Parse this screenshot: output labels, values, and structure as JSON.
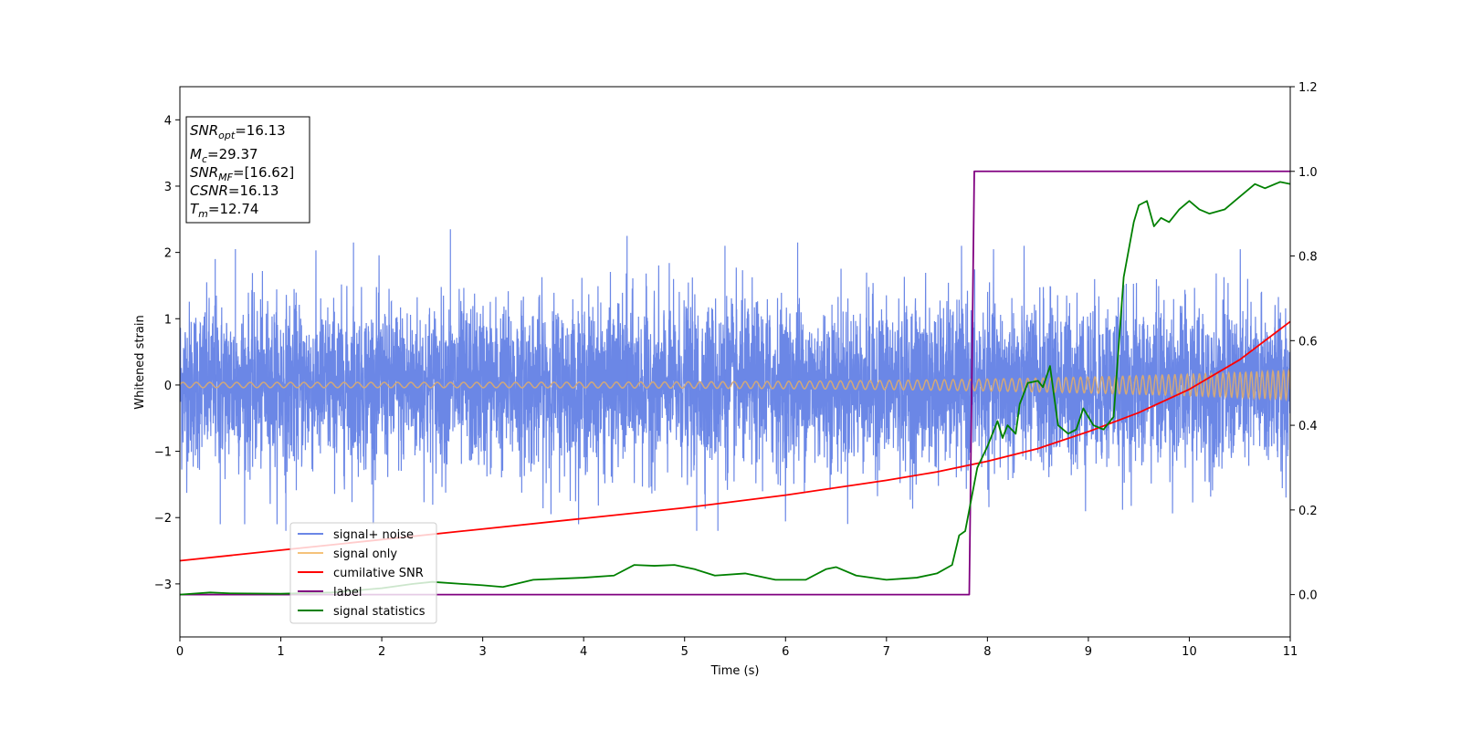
{
  "chart_data": {
    "type": "line",
    "xlabel": "Time (s)",
    "ylabel": "Whitened strain",
    "xlim": [
      0,
      11
    ],
    "ylim_left": [
      -3.8,
      4.5
    ],
    "ylim_right": [
      -0.1,
      1.2
    ],
    "x_ticks": [
      "0",
      "1",
      "2",
      "3",
      "4",
      "5",
      "6",
      "7",
      "8",
      "9",
      "10",
      "11"
    ],
    "y_ticks_left": [
      "−3",
      "−2",
      "−1",
      "0",
      "1",
      "2",
      "3",
      "4"
    ],
    "y_ticks_left_values": [
      -3,
      -2,
      -1,
      0,
      1,
      2,
      3,
      4
    ],
    "y_ticks_right": [
      "0.0",
      "0.2",
      "0.4",
      "0.6",
      "0.8",
      "1.0",
      "1.2"
    ],
    "y_ticks_right_values": [
      0.0,
      0.2,
      0.4,
      0.6,
      0.8,
      1.0,
      1.2
    ],
    "colors": {
      "signal_noise": "#6b87e6",
      "signal_only": "#f5c27a",
      "cumulative_snr": "#ff0000",
      "label": "#800080",
      "signal_statistics": "#008000"
    },
    "annotation": {
      "snr_opt": {
        "base": "SNR",
        "sub": "opt",
        "value": "=16.13"
      },
      "mc": {
        "base": "M",
        "sub": "c",
        "value": "=29.37"
      },
      "snr_mf": {
        "base": "SNR",
        "sub": "MF",
        "value": "=[16.62]"
      },
      "csnr": {
        "base": "CSNR",
        "sub": "",
        "value": "=16.13"
      },
      "tm": {
        "base": "T",
        "sub": "m",
        "value": "=12.74"
      }
    },
    "legend": {
      "placement": "lower-left",
      "entries": [
        "signal+ noise",
        "signal only",
        "cumilative SNR",
        "label",
        "signal statistics"
      ]
    },
    "series": [
      {
        "name": "signal+ noise",
        "axis": "left",
        "description_range": [
          -2.2,
          2.4
        ],
        "peaks": [
          [
            0.35,
            1.9
          ],
          [
            0.55,
            2.05
          ],
          [
            1.72,
            2.15
          ],
          [
            2.68,
            2.35
          ],
          [
            4.43,
            2.25
          ],
          [
            5.12,
            -2.2
          ],
          [
            5.4,
            2.1
          ],
          [
            6.12,
            2.15
          ],
          [
            1.05,
            -2.2
          ],
          [
            0.4,
            -2.1
          ],
          [
            5.33,
            -2.2
          ]
        ]
      },
      {
        "name": "signal only",
        "axis": "left",
        "amplitude_start": 0.04,
        "amplitude_end": 0.22
      },
      {
        "name": "cumilative SNR",
        "axis": "right",
        "x": [
          0,
          1,
          2,
          3,
          4,
          5,
          6,
          7,
          7.5,
          8,
          8.5,
          9,
          9.5,
          10,
          10.5,
          11
        ],
        "y": [
          0.08,
          0.105,
          0.13,
          0.155,
          0.18,
          0.205,
          0.235,
          0.27,
          0.29,
          0.315,
          0.345,
          0.385,
          0.43,
          0.485,
          0.555,
          0.645
        ]
      },
      {
        "name": "label",
        "axis": "right",
        "x": [
          0,
          7.82,
          7.87,
          11
        ],
        "y": [
          0.0,
          0.0,
          1.0,
          1.0
        ]
      },
      {
        "name": "signal statistics",
        "axis": "right",
        "x": [
          0,
          0.3,
          0.5,
          1.0,
          1.5,
          2.0,
          2.3,
          2.5,
          3.0,
          3.2,
          3.5,
          4.0,
          4.3,
          4.5,
          4.7,
          4.9,
          5.1,
          5.3,
          5.6,
          5.9,
          6.2,
          6.4,
          6.5,
          6.7,
          7.0,
          7.3,
          7.5,
          7.65,
          7.72,
          7.78,
          7.9,
          8.0,
          8.1,
          8.15,
          8.2,
          8.28,
          8.32,
          8.4,
          8.5,
          8.55,
          8.62,
          8.7,
          8.8,
          8.88,
          8.95,
          9.05,
          9.15,
          9.25,
          9.35,
          9.45,
          9.5,
          9.58,
          9.65,
          9.72,
          9.8,
          9.9,
          10.0,
          10.1,
          10.2,
          10.35,
          10.45,
          10.55,
          10.65,
          10.75,
          10.9,
          11.0
        ],
        "y": [
          0.0,
          0.005,
          0.003,
          0.002,
          0.005,
          0.015,
          0.025,
          0.03,
          0.022,
          0.018,
          0.035,
          0.04,
          0.045,
          0.07,
          0.068,
          0.07,
          0.06,
          0.045,
          0.05,
          0.035,
          0.035,
          0.06,
          0.065,
          0.045,
          0.035,
          0.04,
          0.05,
          0.07,
          0.14,
          0.15,
          0.3,
          0.35,
          0.41,
          0.37,
          0.4,
          0.38,
          0.45,
          0.5,
          0.505,
          0.49,
          0.54,
          0.4,
          0.38,
          0.39,
          0.44,
          0.4,
          0.39,
          0.42,
          0.75,
          0.88,
          0.92,
          0.93,
          0.87,
          0.89,
          0.88,
          0.91,
          0.93,
          0.91,
          0.9,
          0.91,
          0.93,
          0.95,
          0.97,
          0.96,
          0.975,
          0.97
        ]
      }
    ]
  }
}
